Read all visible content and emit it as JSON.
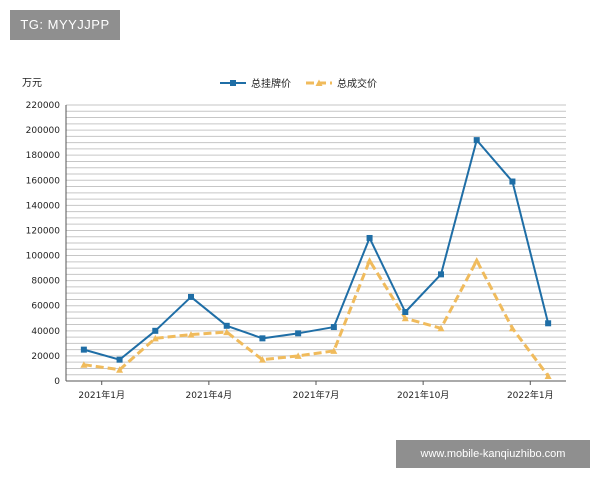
{
  "watermarks": {
    "top": "TG: MYYJJPP",
    "bottom": "www.mobile-kanqiuzhibo.com"
  },
  "chart_data": {
    "type": "line",
    "unit_label": "万元",
    "ylim": [
      0,
      220000
    ],
    "y_ticks": [
      0,
      20000,
      40000,
      60000,
      80000,
      100000,
      120000,
      140000,
      160000,
      180000,
      200000,
      220000
    ],
    "grid": true,
    "legend_position": "top",
    "x_tick_labels": [
      {
        "index": 1,
        "label": "2021年1月"
      },
      {
        "index": 4,
        "label": "2021年4月"
      },
      {
        "index": 7,
        "label": "2021年7月"
      },
      {
        "index": 10,
        "label": "2021年10月"
      },
      {
        "index": 13,
        "label": "2022年1月"
      }
    ],
    "series": [
      {
        "name": "总挂牌价",
        "color": "#1f6ea6",
        "style": "solid-square-markers",
        "values": [
          25000,
          17000,
          40000,
          67000,
          44000,
          34000,
          38000,
          43000,
          114000,
          55000,
          85000,
          192000,
          159000,
          46000
        ]
      },
      {
        "name": "总成交价",
        "color": "#f0bb5c",
        "style": "dashed-triangle-markers",
        "values": [
          13000,
          9000,
          34000,
          37000,
          39000,
          17000,
          20000,
          24000,
          96000,
          50000,
          42000,
          96000,
          42000,
          4000
        ]
      }
    ]
  }
}
